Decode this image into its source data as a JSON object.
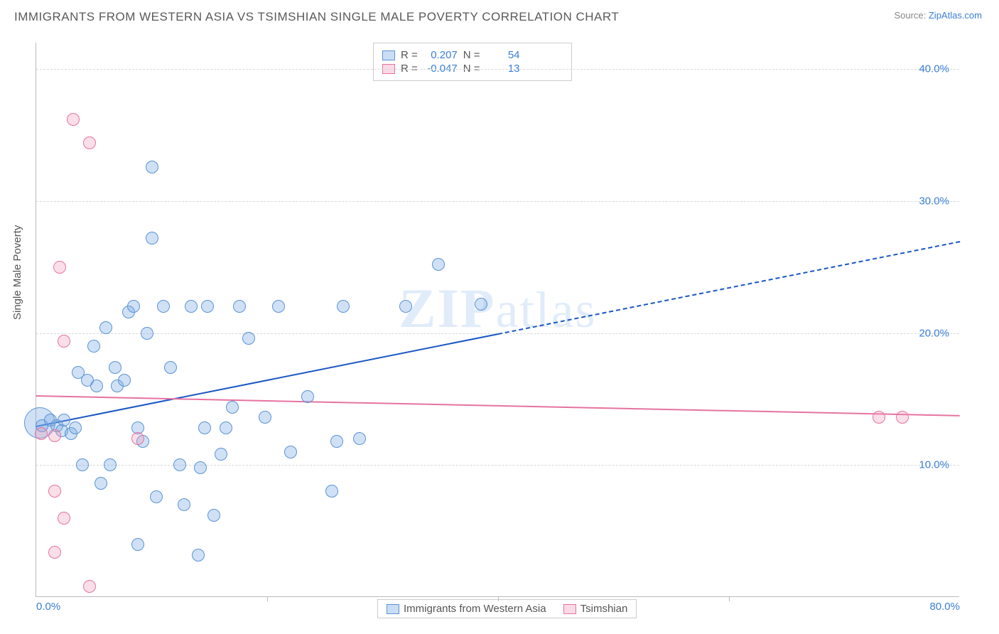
{
  "title": "IMMIGRANTS FROM WESTERN ASIA VS TSIMSHIAN SINGLE MALE POVERTY CORRELATION CHART",
  "source_label": "Source: ",
  "source_site": "ZipAtlas.com",
  "y_axis_title": "Single Male Poverty",
  "watermark_bold": "ZIP",
  "watermark_rest": "atlas",
  "chart": {
    "type": "scatter",
    "background_color": "#ffffff",
    "grid_color": "#d8d8d8",
    "axis_color": "#bbbbbb",
    "tick_label_color": "#3a7fd5",
    "x_range": [
      0,
      80
    ],
    "y_range": [
      0,
      42
    ],
    "y_ticks": [
      10,
      20,
      30,
      40
    ],
    "y_tick_labels": [
      "10.0%",
      "20.0%",
      "30.0%",
      "40.0%"
    ],
    "x_ticks": [
      0,
      80
    ],
    "x_tick_labels": [
      "0.0%",
      "80.0%"
    ],
    "y_ticks_minor": [
      20,
      40,
      60
    ],
    "point_radius": 9,
    "series": [
      {
        "id": "immigrants",
        "label": "Immigrants from Western Asia",
        "color_fill": "rgba(120,170,230,0.35)",
        "color_stroke": "#5b93d3",
        "R": "0.207",
        "N": "54",
        "trend": {
          "x1": 0,
          "y1": 13,
          "x2": 40,
          "y2": 20,
          "x2_dash": 80,
          "y2_dash": 27,
          "color": "#1a56c4"
        },
        "points": [
          {
            "x": 0.3,
            "y": 13.2,
            "r": 22
          },
          {
            "x": 0.5,
            "y": 13.0
          },
          {
            "x": 1.2,
            "y": 13.4
          },
          {
            "x": 1.8,
            "y": 13.0
          },
          {
            "x": 2.2,
            "y": 12.6
          },
          {
            "x": 2.4,
            "y": 13.4
          },
          {
            "x": 3.0,
            "y": 12.4
          },
          {
            "x": 3.4,
            "y": 12.8
          },
          {
            "x": 3.6,
            "y": 17.0
          },
          {
            "x": 4.0,
            "y": 10.0
          },
          {
            "x": 4.4,
            "y": 16.4
          },
          {
            "x": 5.0,
            "y": 19.0
          },
          {
            "x": 5.2,
            "y": 16.0
          },
          {
            "x": 5.6,
            "y": 8.6
          },
          {
            "x": 6.0,
            "y": 20.4
          },
          {
            "x": 6.4,
            "y": 10.0
          },
          {
            "x": 6.8,
            "y": 17.4
          },
          {
            "x": 7.0,
            "y": 16.0
          },
          {
            "x": 7.6,
            "y": 16.4
          },
          {
            "x": 8.0,
            "y": 21.6
          },
          {
            "x": 8.4,
            "y": 22.0
          },
          {
            "x": 8.8,
            "y": 12.8
          },
          {
            "x": 9.2,
            "y": 11.8
          },
          {
            "x": 9.6,
            "y": 20.0
          },
          {
            "x": 10.0,
            "y": 32.6
          },
          {
            "x": 10.0,
            "y": 27.2
          },
          {
            "x": 10.4,
            "y": 7.6
          },
          {
            "x": 11.0,
            "y": 22.0
          },
          {
            "x": 11.6,
            "y": 17.4
          },
          {
            "x": 12.4,
            "y": 10.0
          },
          {
            "x": 12.8,
            "y": 7.0
          },
          {
            "x": 13.4,
            "y": 22.0
          },
          {
            "x": 14.0,
            "y": 3.2
          },
          {
            "x": 14.2,
            "y": 9.8
          },
          {
            "x": 14.6,
            "y": 12.8
          },
          {
            "x": 14.8,
            "y": 22.0
          },
          {
            "x": 15.4,
            "y": 6.2
          },
          {
            "x": 16.0,
            "y": 10.8
          },
          {
            "x": 16.4,
            "y": 12.8
          },
          {
            "x": 17.0,
            "y": 14.4
          },
          {
            "x": 17.6,
            "y": 22.0
          },
          {
            "x": 18.4,
            "y": 19.6
          },
          {
            "x": 19.8,
            "y": 13.6
          },
          {
            "x": 21.0,
            "y": 22.0
          },
          {
            "x": 22.0,
            "y": 11.0
          },
          {
            "x": 23.5,
            "y": 15.2
          },
          {
            "x": 25.6,
            "y": 8.0
          },
          {
            "x": 26.0,
            "y": 11.8
          },
          {
            "x": 26.6,
            "y": 22.0
          },
          {
            "x": 28.0,
            "y": 12.0
          },
          {
            "x": 32.0,
            "y": 22.0
          },
          {
            "x": 34.8,
            "y": 25.2
          },
          {
            "x": 38.5,
            "y": 22.2
          },
          {
            "x": 8.8,
            "y": 4.0
          }
        ]
      },
      {
        "id": "tsimshian",
        "label": "Tsimshian",
        "color_fill": "rgba(240,150,180,0.3)",
        "color_stroke": "#e6739f",
        "R": "-0.047",
        "N": "13",
        "trend": {
          "x1": 0,
          "y1": 15.3,
          "x2": 80,
          "y2": 13.8,
          "color": "#e6739f"
        },
        "points": [
          {
            "x": 3.2,
            "y": 36.2
          },
          {
            "x": 4.6,
            "y": 34.4
          },
          {
            "x": 2.0,
            "y": 25.0
          },
          {
            "x": 2.4,
            "y": 19.4
          },
          {
            "x": 0.4,
            "y": 12.4
          },
          {
            "x": 1.6,
            "y": 12.2
          },
          {
            "x": 8.8,
            "y": 12.0
          },
          {
            "x": 1.6,
            "y": 8.0
          },
          {
            "x": 2.4,
            "y": 6.0
          },
          {
            "x": 1.6,
            "y": 3.4
          },
          {
            "x": 4.6,
            "y": 0.8
          },
          {
            "x": 73.0,
            "y": 13.6
          },
          {
            "x": 75.0,
            "y": 13.6
          }
        ]
      }
    ]
  },
  "legend_top": [
    {
      "series": "immigrants",
      "R_label": "R =",
      "R": "0.207",
      "N_label": "N =",
      "N": "54"
    },
    {
      "series": "tsimshian",
      "R_label": "R =",
      "R": "-0.047",
      "N_label": "N =",
      "N": "13"
    }
  ]
}
